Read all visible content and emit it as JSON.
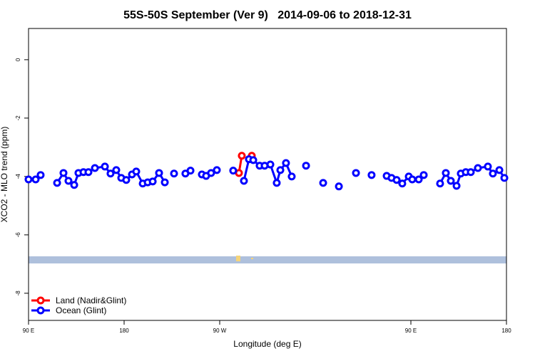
{
  "chart_data": {
    "type": "line",
    "title": "55S-50S September (Ver 9)   2014-09-06 to 2018-12-31",
    "x_label": "Longitude (deg E)",
    "y_label": "XCO2 - MLO trend (ppm)",
    "xlim": [
      90,
      540
    ],
    "ylim": [
      -8.93,
      1.07
    ],
    "xticks": [
      {
        "value": 90,
        "label": "90 E"
      },
      180,
      {
        "value": 270,
        "label": "90 W"
      },
      {
        "value": 450,
        "label": "90 E"
      },
      {
        "value": 540,
        "label": "180"
      }
    ],
    "yticks": [
      0,
      -2,
      -4,
      -6,
      -8
    ],
    "legend": "bottom-left",
    "series": [
      {
        "name": "Land (Nadir&Glint)",
        "color": "#ff0000",
        "x": [
          288.1,
          290.8,
          null,
          300.2
        ],
        "values": [
          -3.88,
          -3.29,
          null,
          -3.29
        ]
      },
      {
        "name": "Ocean (Glint)",
        "color": "#0000ff",
        "x": [
          90,
          96.7,
          101.4,
          null,
          116.9,
          122.9,
          127.6,
          133.0,
          137.0,
          141.7,
          146.4,
          152.5,
          161.9,
          167.2,
          172.6,
          177.3,
          182.0,
          187.4,
          191.4,
          197.5,
          202.2,
          206.9,
          212.9,
          218.3,
          null,
          227.0,
          null,
          237.7,
          242.5,
          null,
          253.2,
          257.2,
          261.9,
          267.3,
          null,
          282.7,
          null,
          292.8,
          297.5,
          301.6,
          307.6,
          312.3,
          317.7,
          323.7,
          327.1,
          332.4,
          337.8,
          null,
          351.3,
          null,
          367.4,
          null,
          382.2,
          null,
          398.3,
          null,
          413.0,
          null,
          427.2,
          431.8,
          436.6,
          441.9,
          448.0,
          451.3,
          457.4,
          462.1,
          null,
          477.5,
          482.9,
          487.6,
          493.0,
          497.0,
          501.7,
          506.4,
          513.1,
          522.5,
          527.2,
          533.3,
          538.0
        ],
        "values": [
          -4.1,
          -4.1,
          -3.95,
          null,
          -4.22,
          -3.88,
          -4.15,
          -4.29,
          -3.88,
          -3.85,
          -3.85,
          -3.71,
          -3.66,
          -3.9,
          -3.78,
          -4.05,
          -4.12,
          -3.93,
          -3.83,
          -4.24,
          -4.2,
          -4.17,
          -3.88,
          -4.2,
          null,
          -3.9,
          null,
          -3.9,
          -3.8,
          null,
          -3.93,
          -3.98,
          -3.88,
          -3.78,
          null,
          -3.8,
          null,
          -4.15,
          -3.41,
          -3.44,
          -3.63,
          -3.63,
          -3.59,
          -4.22,
          -3.78,
          -3.54,
          -4.0,
          null,
          -3.63,
          null,
          -4.22,
          null,
          -4.34,
          null,
          -3.88,
          null,
          -3.95,
          null,
          -3.98,
          -4.05,
          -4.12,
          -4.24,
          -4.0,
          -4.1,
          -4.1,
          -3.95,
          null,
          -4.24,
          -3.88,
          -4.15,
          -4.32,
          -3.9,
          -3.85,
          -3.85,
          -3.71,
          -3.66,
          -3.9,
          -3.78,
          -4.05
        ]
      }
    ]
  }
}
